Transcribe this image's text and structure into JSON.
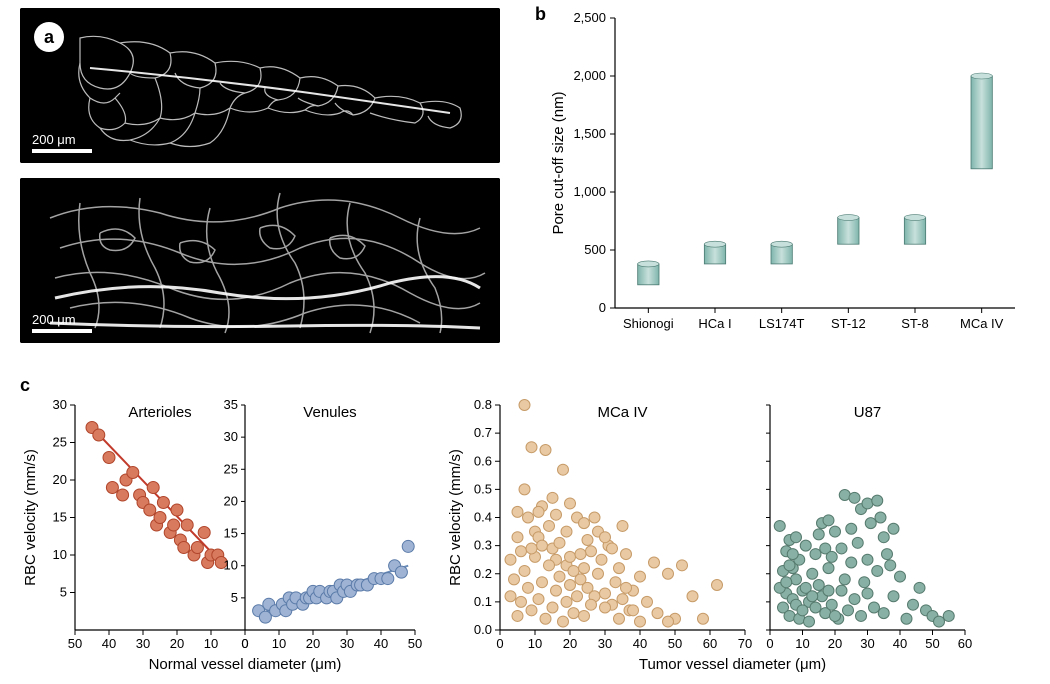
{
  "panelA": {
    "label": "a",
    "scaleBars": [
      "200 μm",
      "200 μm"
    ]
  },
  "panelB": {
    "label": "b",
    "type": "floating-bar",
    "ylabel": "Pore cut-off size (nm)",
    "ylim": [
      0,
      2500
    ],
    "ytick_step": 500,
    "yticks": [
      0,
      500,
      1000,
      1500,
      2000,
      2500
    ],
    "categories": [
      "Shionogi",
      "HCa I",
      "LS174T",
      "ST-12",
      "ST-8",
      "MCa IV"
    ],
    "low_values": [
      200,
      380,
      380,
      550,
      550,
      1200
    ],
    "high_values": [
      380,
      550,
      550,
      780,
      780,
      2000
    ],
    "bar_color": "#7eb5ac",
    "bar_gradient_light": "#c8e0db",
    "bar_width": 0.32,
    "background_color": "#ffffff",
    "axis_color": "#000000",
    "label_fontsize": 15,
    "tick_fontsize": 13
  },
  "panelC": {
    "label": "c",
    "type": "scatter",
    "subplots": [
      {
        "title": "Arterioles",
        "xlabel_shared": "Normal vessel diameter (μm)",
        "ylabel": "RBC velocity (mm/s)",
        "xlim": [
          50,
          0
        ],
        "ylim": [
          0,
          30
        ],
        "xticks": [
          50,
          40,
          30,
          20,
          10,
          0
        ],
        "yticks": [
          5,
          10,
          15,
          20,
          25,
          30
        ],
        "marker_color": "#d87a5e",
        "marker_stroke": "#b0452b",
        "marker_size": 6,
        "trend_line": {
          "x1": 45,
          "y1": 27,
          "x2": 7,
          "y2": 9,
          "color": "#c23a2b",
          "width": 2
        },
        "points": [
          [
            45,
            27
          ],
          [
            43,
            26
          ],
          [
            40,
            23
          ],
          [
            39,
            19
          ],
          [
            36,
            18
          ],
          [
            35,
            20
          ],
          [
            33,
            21
          ],
          [
            31,
            18
          ],
          [
            30,
            17
          ],
          [
            28,
            16
          ],
          [
            27,
            19
          ],
          [
            26,
            14
          ],
          [
            25,
            15
          ],
          [
            24,
            17
          ],
          [
            22,
            13
          ],
          [
            21,
            14
          ],
          [
            20,
            16
          ],
          [
            19,
            12
          ],
          [
            18,
            11
          ],
          [
            17,
            14
          ],
          [
            15,
            10
          ],
          [
            14,
            11
          ],
          [
            12,
            13
          ],
          [
            11,
            9
          ],
          [
            10,
            10
          ],
          [
            8,
            10
          ],
          [
            7,
            9
          ]
        ]
      },
      {
        "title": "Venules",
        "xlabel_shared": "Normal vessel diameter (μm)",
        "ylabel": null,
        "xlim": [
          0,
          50
        ],
        "ylim": [
          0,
          35
        ],
        "xticks": [
          0,
          10,
          20,
          30,
          40,
          50
        ],
        "yticks": [
          5,
          10,
          15,
          20,
          25,
          30,
          35
        ],
        "marker_color": "#9fb4d4",
        "marker_stroke": "#5a7aa8",
        "marker_size": 6,
        "trend_line": {
          "x1": 4,
          "y1": 2.5,
          "x2": 48,
          "y2": 10,
          "color": "#6a8cb8",
          "width": 2
        },
        "points": [
          [
            4,
            3
          ],
          [
            6,
            2
          ],
          [
            7,
            4
          ],
          [
            9,
            3
          ],
          [
            11,
            4
          ],
          [
            12,
            3
          ],
          [
            13,
            5
          ],
          [
            14,
            4
          ],
          [
            15,
            5
          ],
          [
            17,
            4
          ],
          [
            18,
            5
          ],
          [
            19,
            5
          ],
          [
            20,
            6
          ],
          [
            21,
            5
          ],
          [
            22,
            6
          ],
          [
            24,
            5
          ],
          [
            25,
            6
          ],
          [
            26,
            6
          ],
          [
            27,
            5
          ],
          [
            28,
            7
          ],
          [
            29,
            6
          ],
          [
            30,
            7
          ],
          [
            31,
            6
          ],
          [
            33,
            7
          ],
          [
            34,
            7
          ],
          [
            36,
            7
          ],
          [
            38,
            8
          ],
          [
            40,
            8
          ],
          [
            42,
            8
          ],
          [
            44,
            10
          ],
          [
            46,
            9
          ],
          [
            48,
            13
          ]
        ]
      },
      {
        "title": "MCa IV",
        "xlabel_shared": "Tumor vessel diameter (μm)",
        "ylabel": "RBC velocity (mm/s)",
        "xlim": [
          0,
          70
        ],
        "ylim": [
          0,
          0.8
        ],
        "xticks": [
          0,
          10,
          20,
          30,
          40,
          50,
          60,
          70
        ],
        "yticks": [
          0.0,
          0.1,
          0.2,
          0.3,
          0.4,
          0.5,
          0.6,
          0.7,
          0.8
        ],
        "marker_color": "#e8c9a4",
        "marker_stroke": "#c79b68",
        "marker_size": 5.5,
        "points": [
          [
            7,
            0.8
          ],
          [
            9,
            0.65
          ],
          [
            13,
            0.64
          ],
          [
            18,
            0.57
          ],
          [
            5,
            0.42
          ],
          [
            8,
            0.4
          ],
          [
            10,
            0.35
          ],
          [
            11,
            0.33
          ],
          [
            12,
            0.3
          ],
          [
            6,
            0.28
          ],
          [
            14,
            0.37
          ],
          [
            15,
            0.29
          ],
          [
            16,
            0.25
          ],
          [
            17,
            0.31
          ],
          [
            19,
            0.23
          ],
          [
            20,
            0.26
          ],
          [
            21,
            0.21
          ],
          [
            22,
            0.4
          ],
          [
            23,
            0.18
          ],
          [
            24,
            0.22
          ],
          [
            25,
            0.15
          ],
          [
            26,
            0.28
          ],
          [
            27,
            0.12
          ],
          [
            28,
            0.2
          ],
          [
            29,
            0.25
          ],
          [
            30,
            0.13
          ],
          [
            31,
            0.3
          ],
          [
            32,
            0.09
          ],
          [
            33,
            0.17
          ],
          [
            34,
            0.22
          ],
          [
            35,
            0.11
          ],
          [
            36,
            0.27
          ],
          [
            37,
            0.07
          ],
          [
            38,
            0.14
          ],
          [
            40,
            0.19
          ],
          [
            42,
            0.1
          ],
          [
            44,
            0.24
          ],
          [
            45,
            0.06
          ],
          [
            48,
            0.2
          ],
          [
            50,
            0.04
          ],
          [
            3,
            0.12
          ],
          [
            4,
            0.18
          ],
          [
            5,
            0.05
          ],
          [
            6,
            0.1
          ],
          [
            7,
            0.21
          ],
          [
            8,
            0.15
          ],
          [
            9,
            0.07
          ],
          [
            10,
            0.26
          ],
          [
            11,
            0.11
          ],
          [
            12,
            0.17
          ],
          [
            13,
            0.04
          ],
          [
            14,
            0.23
          ],
          [
            15,
            0.08
          ],
          [
            16,
            0.14
          ],
          [
            17,
            0.19
          ],
          [
            18,
            0.03
          ],
          [
            19,
            0.1
          ],
          [
            20,
            0.16
          ],
          [
            21,
            0.06
          ],
          [
            22,
            0.12
          ],
          [
            23,
            0.27
          ],
          [
            24,
            0.05
          ],
          [
            25,
            0.32
          ],
          [
            26,
            0.09
          ],
          [
            28,
            0.35
          ],
          [
            30,
            0.08
          ],
          [
            32,
            0.29
          ],
          [
            34,
            0.04
          ],
          [
            36,
            0.15
          ],
          [
            38,
            0.07
          ],
          [
            40,
            0.03
          ],
          [
            52,
            0.23
          ],
          [
            55,
            0.12
          ],
          [
            58,
            0.04
          ],
          [
            48,
            0.03
          ],
          [
            7,
            0.5
          ],
          [
            12,
            0.44
          ],
          [
            16,
            0.41
          ],
          [
            20,
            0.45
          ],
          [
            24,
            0.38
          ],
          [
            62,
            0.16
          ],
          [
            15,
            0.47
          ],
          [
            3,
            0.25
          ],
          [
            5,
            0.33
          ],
          [
            9,
            0.29
          ],
          [
            11,
            0.42
          ],
          [
            27,
            0.4
          ],
          [
            30,
            0.33
          ],
          [
            35,
            0.37
          ],
          [
            19,
            0.35
          ]
        ]
      },
      {
        "title": "U87",
        "xlabel_shared": "Tumor vessel diameter (μm)",
        "ylabel": null,
        "xlim": [
          0,
          60
        ],
        "ylim": [
          0,
          0.8
        ],
        "xticks": [
          0,
          10,
          20,
          30,
          40,
          50,
          60
        ],
        "yticks": [
          0.0,
          0.1,
          0.2,
          0.3,
          0.4,
          0.5,
          0.6,
          0.7,
          0.8
        ],
        "marker_color": "#88b0a4",
        "marker_stroke": "#567a6e",
        "marker_size": 5.5,
        "points": [
          [
            23,
            0.48
          ],
          [
            26,
            0.47
          ],
          [
            28,
            0.43
          ],
          [
            30,
            0.45
          ],
          [
            33,
            0.46
          ],
          [
            3,
            0.37
          ],
          [
            5,
            0.28
          ],
          [
            6,
            0.32
          ],
          [
            7,
            0.22
          ],
          [
            8,
            0.18
          ],
          [
            9,
            0.25
          ],
          [
            10,
            0.14
          ],
          [
            11,
            0.3
          ],
          [
            12,
            0.1
          ],
          [
            13,
            0.2
          ],
          [
            14,
            0.08
          ],
          [
            15,
            0.16
          ],
          [
            16,
            0.12
          ],
          [
            17,
            0.06
          ],
          [
            18,
            0.22
          ],
          [
            19,
            0.09
          ],
          [
            20,
            0.35
          ],
          [
            21,
            0.04
          ],
          [
            22,
            0.14
          ],
          [
            23,
            0.18
          ],
          [
            24,
            0.07
          ],
          [
            25,
            0.24
          ],
          [
            26,
            0.11
          ],
          [
            27,
            0.31
          ],
          [
            28,
            0.05
          ],
          [
            29,
            0.17
          ],
          [
            30,
            0.13
          ],
          [
            31,
            0.38
          ],
          [
            32,
            0.08
          ],
          [
            33,
            0.21
          ],
          [
            34,
            0.4
          ],
          [
            35,
            0.06
          ],
          [
            36,
            0.27
          ],
          [
            38,
            0.12
          ],
          [
            40,
            0.19
          ],
          [
            42,
            0.04
          ],
          [
            44,
            0.09
          ],
          [
            46,
            0.15
          ],
          [
            48,
            0.07
          ],
          [
            50,
            0.05
          ],
          [
            52,
            0.03
          ],
          [
            55,
            0.05
          ],
          [
            4,
            0.08
          ],
          [
            5,
            0.13
          ],
          [
            6,
            0.05
          ],
          [
            7,
            0.11
          ],
          [
            8,
            0.09
          ],
          [
            9,
            0.04
          ],
          [
            10,
            0.07
          ],
          [
            11,
            0.15
          ],
          [
            12,
            0.03
          ],
          [
            13,
            0.12
          ],
          [
            3,
            0.15
          ],
          [
            4,
            0.21
          ],
          [
            5,
            0.17
          ],
          [
            6,
            0.23
          ],
          [
            7,
            0.27
          ],
          [
            8,
            0.33
          ],
          [
            14,
            0.27
          ],
          [
            15,
            0.34
          ],
          [
            17,
            0.29
          ],
          [
            19,
            0.26
          ],
          [
            16,
            0.38
          ],
          [
            22,
            0.29
          ],
          [
            25,
            0.36
          ],
          [
            18,
            0.39
          ],
          [
            35,
            0.33
          ],
          [
            38,
            0.36
          ],
          [
            18,
            0.14
          ],
          [
            20,
            0.05
          ],
          [
            30,
            0.25
          ],
          [
            37,
            0.23
          ]
        ]
      }
    ],
    "xlabel_left": "Normal vessel diameter (μm)",
    "xlabel_right": "Tumor vessel diameter (μm)"
  }
}
